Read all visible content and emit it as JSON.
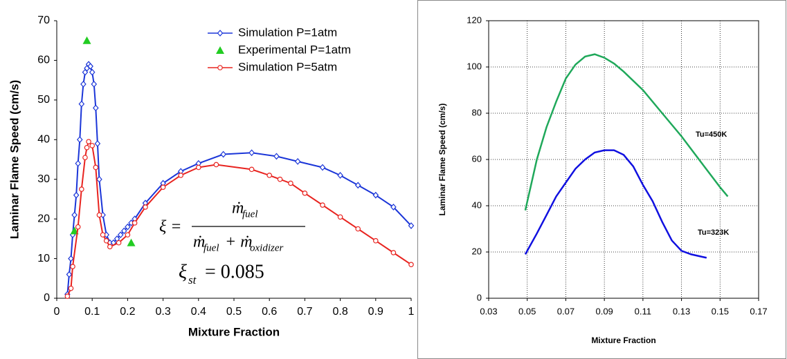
{
  "chart_data": [
    {
      "type": "line",
      "x_label": "Mixture Fraction",
      "y_label": "Laminar Flame Speed (cm/s)",
      "xlim": [
        0,
        1
      ],
      "xticks": [
        0,
        0.1,
        0.2,
        0.3,
        0.4,
        0.5,
        0.6,
        0.7,
        0.8,
        0.9,
        1
      ],
      "ylim": [
        0,
        70
      ],
      "yticks": [
        0,
        10,
        20,
        30,
        40,
        50,
        60,
        70
      ],
      "grid": false,
      "legend": "upper right",
      "series": [
        {
          "name": "Simulation P=1atm",
          "color": "#1a35d8",
          "marker": "diamond",
          "line": true,
          "x": [
            0.03,
            0.035,
            0.04,
            0.045,
            0.05,
            0.055,
            0.06,
            0.065,
            0.07,
            0.075,
            0.08,
            0.085,
            0.09,
            0.095,
            0.1,
            0.105,
            0.11,
            0.115,
            0.12,
            0.13,
            0.14,
            0.15,
            0.16,
            0.17,
            0.18,
            0.19,
            0.2,
            0.21,
            0.22,
            0.25,
            0.3,
            0.35,
            0.4,
            0.47,
            0.55,
            0.62,
            0.68,
            0.75,
            0.8,
            0.85,
            0.9,
            0.95,
            1
          ],
          "values": [
            1,
            6,
            10,
            16,
            21,
            26,
            34,
            40,
            49,
            54,
            57,
            58,
            59,
            58.5,
            57,
            54,
            48,
            39,
            30,
            21,
            16,
            14,
            14,
            15,
            16,
            17,
            18,
            19,
            20,
            24,
            29,
            32,
            34,
            36.3,
            36.7,
            35.8,
            34.5,
            33,
            31,
            28.5,
            26,
            23,
            18.3
          ]
        },
        {
          "name": "Experimental P=1atm",
          "color": "#22cc22",
          "marker": "triangle",
          "line": false,
          "x": [
            0.05,
            0.085,
            0.21
          ],
          "values": [
            17,
            65,
            14
          ]
        },
        {
          "name": "Simulation P=5atm",
          "color": "#e8231f",
          "marker": "circle",
          "line": true,
          "x": [
            0.03,
            0.04,
            0.045,
            0.06,
            0.07,
            0.08,
            0.085,
            0.09,
            0.1,
            0.11,
            0.12,
            0.13,
            0.14,
            0.15,
            0.175,
            0.2,
            0.22,
            0.25,
            0.3,
            0.35,
            0.4,
            0.45,
            0.55,
            0.6,
            0.63,
            0.66,
            0.7,
            0.75,
            0.8,
            0.85,
            0.9,
            0.95,
            1
          ],
          "values": [
            0.5,
            2.5,
            8,
            18,
            27.5,
            35.5,
            38,
            39.5,
            38.5,
            33,
            21,
            16,
            14.5,
            13,
            14,
            16,
            19,
            23,
            28,
            31,
            33,
            33.7,
            32.5,
            31,
            30,
            29,
            26.5,
            23.5,
            20.5,
            17.5,
            14.5,
            11.5,
            8.5
          ]
        }
      ],
      "formula": {
        "lhs": "ξ =",
        "num": "ṁ",
        "num_sub": "fuel",
        "den1": "ṁ",
        "den1_sub": "fuel",
        "den2": "+ ṁ",
        "den2_sub": "oxidizer"
      },
      "stoich": {
        "symbol": "ξ",
        "sub": "st",
        "rhs": "= 0.085"
      }
    },
    {
      "type": "line",
      "x_label": "Mixture Fraction",
      "y_label": "Laminar Flame Speed (cm/s)",
      "xlim": [
        0.03,
        0.17
      ],
      "xticks": [
        0.03,
        0.05,
        0.07,
        0.09,
        0.11,
        0.13,
        0.15,
        0.17
      ],
      "ylim": [
        0,
        120
      ],
      "yticks": [
        0,
        20,
        40,
        60,
        80,
        100,
        120
      ],
      "grid": true,
      "series": [
        {
          "name": "Tu=450K",
          "color": "#1fa85a",
          "marker": "none",
          "line": true,
          "x": [
            0.049,
            0.055,
            0.06,
            0.065,
            0.07,
            0.075,
            0.08,
            0.085,
            0.09,
            0.095,
            0.1,
            0.11,
            0.12,
            0.13,
            0.14,
            0.15,
            0.154
          ],
          "values": [
            38,
            60,
            74,
            85,
            95,
            101,
            104.5,
            105.5,
            104,
            101.5,
            98,
            90,
            80,
            70,
            59,
            48,
            44
          ]
        },
        {
          "name": "Tu=323K",
          "color": "#1010e0",
          "marker": "none",
          "line": true,
          "x": [
            0.049,
            0.055,
            0.06,
            0.065,
            0.07,
            0.075,
            0.08,
            0.085,
            0.09,
            0.095,
            0.1,
            0.105,
            0.11,
            0.115,
            0.12,
            0.125,
            0.13,
            0.135,
            0.143
          ],
          "values": [
            19,
            28,
            36,
            44,
            50,
            56,
            60,
            63,
            64,
            64,
            62,
            57,
            49,
            42,
            33,
            25,
            20.5,
            19,
            17.5
          ]
        }
      ]
    }
  ]
}
